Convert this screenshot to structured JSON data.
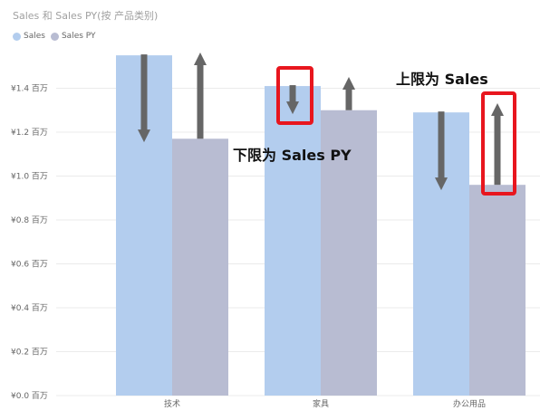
{
  "chart_data": {
    "type": "bar",
    "title": "Sales 和 Sales PY(按 产品类别)",
    "categories": [
      "技术",
      "家具",
      "办公用品"
    ],
    "series": [
      {
        "name": "Sales",
        "values": [
          1.55,
          1.41,
          1.29
        ],
        "color": "#b3cdee"
      },
      {
        "name": "Sales PY",
        "values": [
          1.17,
          1.3,
          0.96
        ],
        "color": "#b8bcd2"
      }
    ],
    "ylim": [
      0,
      1.6
    ],
    "yticks": [
      0,
      0.2,
      0.4,
      0.6,
      0.8,
      1.0,
      1.2,
      1.4
    ],
    "ytick_labels": [
      "¥0.0 百万",
      "¥0.2 百万",
      "¥0.4 百万",
      "¥0.6 百万",
      "¥0.8 百万",
      "¥1.0 百万",
      "¥1.2 百万",
      "¥1.4 百万"
    ],
    "grid": true,
    "legend": "top-left",
    "annotations": [
      {
        "text": "下限为 Sales PY",
        "id": "lower"
      },
      {
        "text": "上限为 Sales",
        "id": "upper"
      }
    ],
    "arrow_color": "#666666",
    "highlight_color": "#e8161e"
  }
}
